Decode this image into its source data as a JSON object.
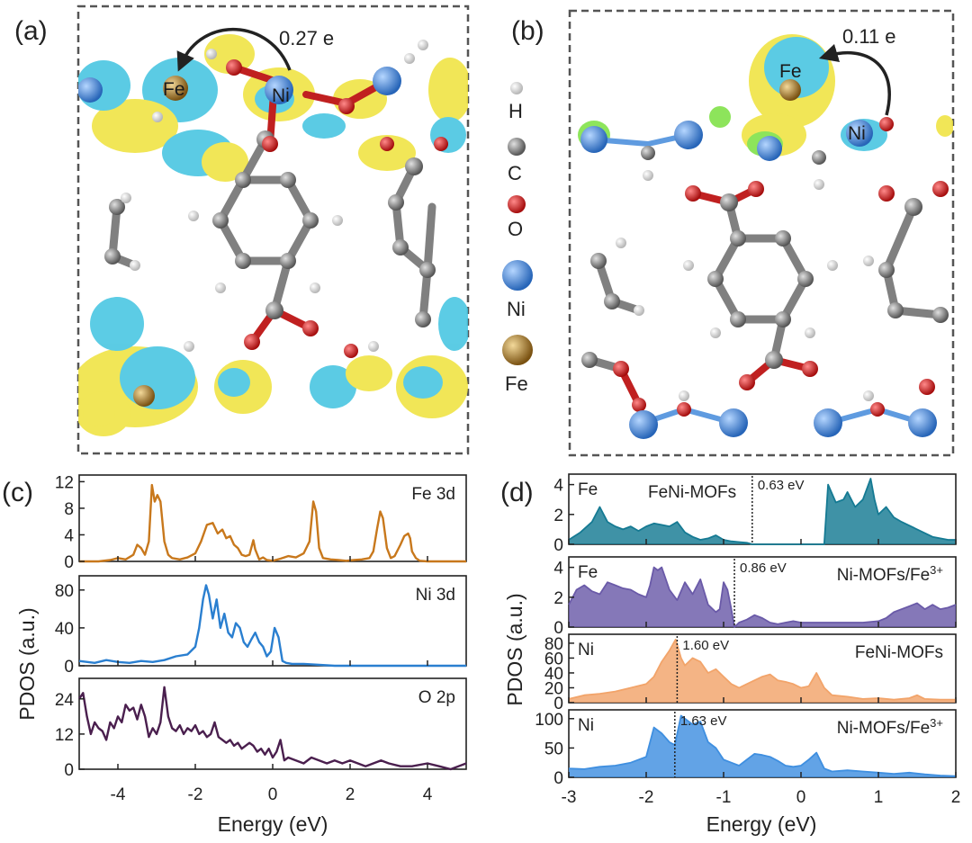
{
  "panels": {
    "a": {
      "letter": "(a)",
      "charge": "0.27 e",
      "atom_fe": "Fe",
      "atom_ni": "Ni"
    },
    "b": {
      "letter": "(b)",
      "charge": "0.11 e",
      "atom_fe": "Fe",
      "atom_ni": "Ni"
    },
    "c": {
      "letter": "(c)"
    },
    "d": {
      "letter": "(d)"
    }
  },
  "legend": [
    {
      "label": "H",
      "color": "#e8e8e8",
      "size": "small"
    },
    {
      "label": "C",
      "color": "#7a7a7a",
      "size": "medium"
    },
    {
      "label": "O",
      "color": "#d01818",
      "size": "medium"
    },
    {
      "label": "Ni",
      "color": "#3f86d8",
      "size": "large"
    },
    {
      "label": "Fe",
      "color": "#b8822a",
      "size": "large"
    }
  ],
  "colors": {
    "fe_c": "#c8781c",
    "ni_c": "#2a7fd0",
    "o_c": "#4a1f4e",
    "d_fe1": "#157a93",
    "d_fe2": "#6a5aa8",
    "d_ni1": "#f2a46a",
    "d_ni2": "#3f8fe0",
    "iso_yellow": "#efe23a",
    "iso_cyan": "#3fc3e0"
  },
  "chart_data": [
    {
      "id": "c",
      "type": "line",
      "xlabel": "Energy (eV)",
      "ylabel": "PDOS (a.u.)",
      "xlim": [
        -5,
        5
      ],
      "xticks": [
        -4,
        -2,
        0,
        2,
        4
      ],
      "xtick_labels": [
        "-4",
        "-2",
        "0",
        "2",
        "4"
      ],
      "subplots": [
        {
          "name": "Fe 3d",
          "ylim": [
            0,
            13
          ],
          "yticks": [
            0,
            4,
            8,
            12
          ],
          "ytick_labels": [
            "0",
            "4",
            "8",
            "12"
          ],
          "color_key": "fe_c",
          "x": [
            -5,
            -4.5,
            -4.2,
            -4,
            -3.8,
            -3.6,
            -3.5,
            -3.4,
            -3.3,
            -3.2,
            -3.12,
            -3.05,
            -2.98,
            -2.9,
            -2.8,
            -2.7,
            -2.6,
            -2.4,
            -2.2,
            -2,
            -1.85,
            -1.7,
            -1.55,
            -1.42,
            -1.3,
            -1.2,
            -1.1,
            -1,
            -0.9,
            -0.8,
            -0.7,
            -0.6,
            -0.5,
            -0.45,
            -0.35,
            -0.25,
            -0.15,
            0,
            0.2,
            0.4,
            0.6,
            0.8,
            0.95,
            1.05,
            1.12,
            1.2,
            1.3,
            1.5,
            1.7,
            1.9,
            2.1,
            2.3,
            2.5,
            2.6,
            2.7,
            2.78,
            2.85,
            2.95,
            3.05,
            3.15,
            3.3,
            3.4,
            3.5,
            3.55,
            3.6,
            3.7,
            3.8,
            4,
            4.3,
            4.6,
            5
          ],
          "y": [
            0,
            0,
            0.2,
            0.5,
            0.3,
            1,
            2.5,
            2,
            1,
            3,
            11.5,
            9,
            10,
            9,
            3,
            1,
            0.5,
            0.3,
            0.6,
            1.2,
            3,
            5.5,
            5.8,
            4.2,
            4.8,
            3.5,
            3.8,
            2.5,
            2,
            1,
            0.8,
            1,
            3.2,
            1.8,
            0.3,
            0.6,
            0.2,
            0.1,
            0.4,
            0.8,
            0.6,
            1.2,
            3,
            9,
            7.5,
            2,
            0.5,
            0.3,
            0.2,
            0.1,
            0.2,
            0.3,
            0.5,
            1.5,
            5,
            7.5,
            6.5,
            2,
            0.5,
            0.8,
            2.5,
            3.8,
            4.2,
            3.5,
            1.5,
            0.5,
            0.1,
            0,
            0,
            0,
            0
          ]
        },
        {
          "name": "Ni 3d",
          "ylim": [
            0,
            95
          ],
          "yticks": [
            0,
            40,
            80
          ],
          "ytick_labels": [
            "0",
            "40",
            "80"
          ],
          "color_key": "ni_c",
          "x": [
            -5,
            -4.6,
            -4.3,
            -4,
            -3.7,
            -3.4,
            -3.1,
            -2.8,
            -2.5,
            -2.2,
            -2,
            -1.9,
            -1.8,
            -1.72,
            -1.65,
            -1.55,
            -1.45,
            -1.35,
            -1.25,
            -1.15,
            -1.05,
            -0.95,
            -0.85,
            -0.75,
            -0.65,
            -0.55,
            -0.45,
            -0.35,
            -0.25,
            -0.15,
            -0.05,
            0.05,
            0.15,
            0.25,
            0.35,
            0.5,
            0.8,
            1.2,
            1.6,
            2,
            2.4,
            5
          ],
          "y": [
            5,
            3,
            6,
            4,
            3,
            5,
            4,
            6,
            10,
            12,
            20,
            40,
            70,
            85,
            75,
            50,
            70,
            40,
            55,
            35,
            30,
            45,
            40,
            25,
            20,
            28,
            35,
            25,
            20,
            10,
            15,
            40,
            30,
            5,
            3,
            2,
            2,
            1,
            0,
            0,
            0,
            0
          ]
        },
        {
          "name": "O 2p",
          "ylim": [
            0,
            31
          ],
          "yticks": [
            0,
            12,
            24
          ],
          "ytick_labels": [
            "0",
            "12",
            "24"
          ],
          "color_key": "o_c",
          "x": [
            -5,
            -4.9,
            -4.8,
            -4.7,
            -4.6,
            -4.5,
            -4.4,
            -4.3,
            -4.2,
            -4.1,
            -4,
            -3.9,
            -3.8,
            -3.7,
            -3.6,
            -3.5,
            -3.4,
            -3.3,
            -3.2,
            -3.1,
            -3,
            -2.9,
            -2.8,
            -2.7,
            -2.6,
            -2.5,
            -2.4,
            -2.3,
            -2.2,
            -2.1,
            -2,
            -1.9,
            -1.8,
            -1.7,
            -1.6,
            -1.5,
            -1.4,
            -1.3,
            -1.2,
            -1.1,
            -1,
            -0.9,
            -0.8,
            -0.7,
            -0.6,
            -0.5,
            -0.4,
            -0.3,
            -0.2,
            -0.1,
            0,
            0.1,
            0.2,
            0.3,
            0.4,
            0.6,
            0.8,
            1,
            1.2,
            1.4,
            1.6,
            1.8,
            2,
            2.2,
            2.4,
            2.6,
            2.8,
            3,
            3.3,
            3.6,
            4,
            4.3,
            4.6,
            5
          ],
          "y": [
            24,
            26,
            18,
            12,
            16,
            14,
            13,
            10,
            16,
            14,
            18,
            16,
            22,
            20,
            21,
            17,
            22,
            18,
            11,
            14,
            12,
            16,
            28,
            18,
            14,
            13,
            15,
            12,
            14,
            13,
            15,
            12,
            13,
            11,
            12,
            16,
            11,
            10,
            9,
            10,
            8,
            9,
            7,
            8,
            9,
            8,
            6,
            7,
            5,
            7,
            4,
            6,
            10,
            3,
            4,
            3,
            2,
            4,
            3,
            2,
            3,
            2,
            3,
            2,
            1,
            2,
            3,
            2,
            1,
            1,
            2,
            1,
            0,
            2
          ]
        }
      ]
    },
    {
      "id": "d",
      "type": "area",
      "xlabel": "Energy (eV)",
      "ylabel": "PDOS (a.u.)",
      "xlim": [
        -3,
        2
      ],
      "xticks": [
        -3,
        -2,
        -1,
        0,
        1,
        2
      ],
      "xtick_labels": [
        "-3",
        "-2",
        "-1",
        "0",
        "1",
        "2"
      ],
      "subplots": [
        {
          "element": "Fe",
          "material": "FeNi-MOFs",
          "gap": "0.63 eV",
          "gap_at": -0.63,
          "ylim": [
            0,
            4.7
          ],
          "yticks": [
            0,
            2,
            4
          ],
          "ytick_labels": [
            "0",
            "2",
            "4"
          ],
          "color_key": "d_fe1",
          "x": [
            -3,
            -2.85,
            -2.7,
            -2.6,
            -2.5,
            -2.4,
            -2.3,
            -2.2,
            -2.1,
            -2,
            -1.9,
            -1.8,
            -1.7,
            -1.6,
            -1.5,
            -1.4,
            -1.3,
            -1.2,
            -1.1,
            -1,
            -0.9,
            -0.8,
            -0.7,
            -0.63,
            -0.5,
            -0.3,
            -0.1,
            0,
            0.1,
            0.2,
            0.3,
            0.35,
            0.45,
            0.55,
            0.6,
            0.7,
            0.8,
            0.9,
            0.95,
            1,
            1.1,
            1.2,
            1.3,
            1.5,
            1.7,
            1.9,
            2
          ],
          "y": [
            0.3,
            0.8,
            1.5,
            2.5,
            1.5,
            1.2,
            1,
            1.2,
            0.9,
            1.2,
            1.4,
            1.3,
            1.2,
            1.5,
            0.8,
            0.5,
            0.3,
            0.4,
            0.6,
            0.3,
            0.2,
            0.15,
            0.1,
            0,
            0,
            0,
            0,
            0,
            0,
            0,
            0,
            4,
            2.8,
            3,
            3.5,
            2.5,
            3,
            4.4,
            3,
            2,
            2.5,
            1.8,
            1.5,
            1,
            0.5,
            0.3,
            0.3
          ]
        },
        {
          "element": "Fe",
          "material": "Ni-MOFs/Fe",
          "material_sup": "3+",
          "gap": "0.86 eV",
          "gap_at": -0.86,
          "ylim": [
            0,
            4.7
          ],
          "yticks": [
            0,
            2,
            4
          ],
          "ytick_labels": [
            "0",
            "2",
            "4"
          ],
          "color_key": "d_fe2",
          "x": [
            -3,
            -2.9,
            -2.8,
            -2.7,
            -2.6,
            -2.5,
            -2.4,
            -2.3,
            -2.2,
            -2.1,
            -2,
            -1.95,
            -1.9,
            -1.85,
            -1.8,
            -1.7,
            -1.6,
            -1.5,
            -1.4,
            -1.3,
            -1.2,
            -1.1,
            -1.05,
            -1,
            -0.95,
            -0.9,
            -0.86,
            -0.8,
            -0.7,
            -0.6,
            -0.5,
            -0.4,
            -0.3,
            -0.2,
            -0.1,
            0,
            0.2,
            0.4,
            0.6,
            0.8,
            1,
            1.1,
            1.2,
            1.4,
            1.5,
            1.6,
            1.7,
            1.8,
            1.9,
            2
          ],
          "y": [
            1.5,
            2.5,
            2.8,
            2.4,
            2.2,
            3,
            2.8,
            2.6,
            2.5,
            2.2,
            2,
            2.8,
            4,
            3.8,
            4,
            2.5,
            1.8,
            3,
            2.2,
            3.2,
            1.5,
            1,
            1.2,
            3,
            2.5,
            1.2,
            0,
            0.3,
            0.5,
            0.8,
            0.6,
            0.3,
            0.2,
            0.3,
            0.4,
            0.3,
            0.3,
            0.3,
            0.3,
            0.3,
            0.4,
            0.6,
            1,
            1.4,
            1.6,
            1.2,
            1.5,
            1.2,
            1.3,
            1.5
          ]
        },
        {
          "element": "Ni",
          "material": "FeNi-MOFs",
          "gap": "1.60 eV",
          "gap_at": -1.6,
          "ylim": [
            0,
            92
          ],
          "yticks": [
            0,
            20,
            40,
            60,
            80
          ],
          "ytick_labels": [
            "0",
            "20",
            "40",
            "60",
            "80"
          ],
          "color_key": "d_ni1",
          "x": [
            -3,
            -2.8,
            -2.6,
            -2.4,
            -2.2,
            -2,
            -1.9,
            -1.8,
            -1.7,
            -1.62,
            -1.55,
            -1.5,
            -1.4,
            -1.3,
            -1.2,
            -1.1,
            -1,
            -0.9,
            -0.8,
            -0.7,
            -0.6,
            -0.5,
            -0.4,
            -0.3,
            -0.2,
            -0.1,
            0,
            0.1,
            0.2,
            0.3,
            0.4,
            0.6,
            0.8,
            1,
            1.2,
            1.4,
            1.5,
            1.6,
            1.8,
            2
          ],
          "y": [
            5,
            10,
            12,
            15,
            20,
            25,
            35,
            55,
            70,
            85,
            60,
            50,
            60,
            55,
            40,
            45,
            35,
            25,
            20,
            25,
            30,
            35,
            38,
            30,
            28,
            25,
            20,
            22,
            40,
            20,
            10,
            8,
            5,
            6,
            4,
            6,
            10,
            5,
            4,
            4
          ]
        },
        {
          "element": "Ni",
          "material": "Ni-MOFs/Fe",
          "material_sup": "3+",
          "gap": "1.63 eV",
          "gap_at": -1.63,
          "ylim": [
            0,
            115
          ],
          "yticks": [
            0,
            50,
            100
          ],
          "ytick_labels": [
            "0",
            "50",
            "100"
          ],
          "color_key": "d_ni2",
          "x": [
            -3,
            -2.8,
            -2.6,
            -2.4,
            -2.2,
            -2,
            -1.9,
            -1.8,
            -1.7,
            -1.63,
            -1.55,
            -1.5,
            -1.4,
            -1.3,
            -1.2,
            -1.1,
            -1,
            -0.9,
            -0.8,
            -0.7,
            -0.6,
            -0.5,
            -0.4,
            -0.3,
            -0.2,
            -0.1,
            0,
            0.1,
            0.2,
            0.3,
            0.4,
            0.6,
            0.8,
            1,
            1.2,
            1.4,
            1.6,
            1.8,
            2
          ],
          "y": [
            15,
            14,
            18,
            20,
            25,
            35,
            85,
            75,
            60,
            55,
            105,
            100,
            90,
            95,
            60,
            50,
            30,
            25,
            20,
            30,
            40,
            38,
            35,
            28,
            20,
            18,
            20,
            30,
            42,
            15,
            10,
            12,
            10,
            8,
            6,
            8,
            5,
            3,
            2
          ]
        }
      ]
    }
  ]
}
